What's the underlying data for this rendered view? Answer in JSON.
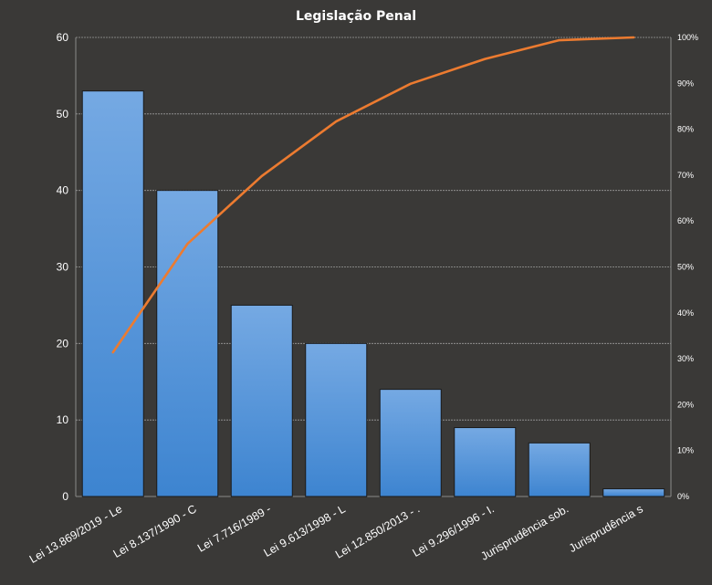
{
  "chart_data": {
    "type": "bar",
    "title": "Legislação Penal",
    "categories": [
      "Lei 13.869/2019 - Le",
      "Lei 8.137/1990 - C",
      "Lei 7.716/1989 -",
      "Lei 9.613/1998 - L",
      "Lei 12.850/2013 - .",
      "Lei 9.296/1996 - I.",
      "Jurisprudência sob.",
      "Jurisprudência s"
    ],
    "series": [
      {
        "type": "bar",
        "values": [
          53,
          40,
          25,
          20,
          14,
          9,
          7,
          1
        ],
        "color": "#4a8fd6"
      },
      {
        "type": "line",
        "axis": "secondary",
        "values": [
          31.4,
          55.0,
          69.8,
          81.7,
          89.9,
          95.3,
          99.4,
          100.0
        ],
        "color": "#ec7b30"
      }
    ],
    "ylim": [
      0,
      60
    ],
    "yticks": [
      0,
      10,
      20,
      30,
      40,
      50,
      60
    ],
    "y2lim": [
      0,
      100
    ],
    "y2ticks": [
      "0%",
      "10%",
      "20%",
      "30%",
      "40%",
      "50%",
      "60%",
      "70%",
      "80%",
      "90%",
      "100%"
    ],
    "grid": true,
    "legend": "none"
  }
}
